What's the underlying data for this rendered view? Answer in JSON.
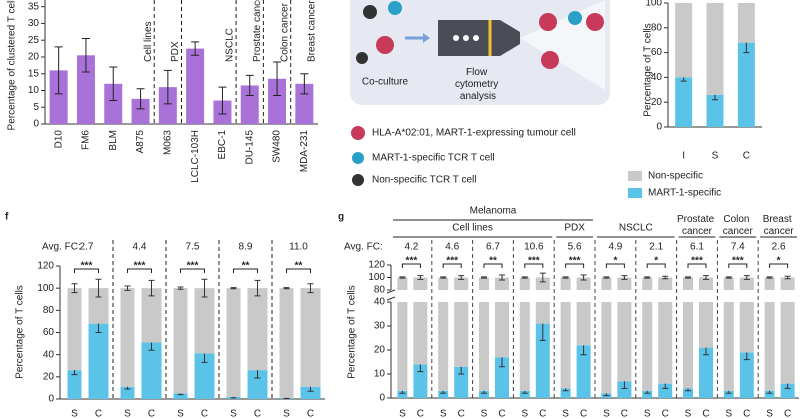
{
  "chart_data": [
    {
      "type": "bar",
      "ylabel": "Percentage of clustered T cells",
      "categories": [
        "D10",
        "FM6",
        "BLM",
        "A875",
        "M063",
        "LCLC-103H",
        "EBC-1",
        "DU-145",
        "SW480",
        "MDA-231"
      ],
      "values": [
        16,
        20.5,
        12,
        7.5,
        11,
        22.5,
        7,
        11.5,
        13.5,
        12
      ],
      "errors": [
        7,
        5,
        5,
        3,
        5,
        2,
        4,
        3,
        5,
        3
      ],
      "color": "#a872d8",
      "groups": [
        {
          "label": "Cell lines",
          "size": 4
        },
        {
          "label": "PDX",
          "size": 1
        },
        {
          "label": "NSCLC",
          "size": 2
        },
        {
          "label": "Prostate cancer",
          "size": 1
        },
        {
          "label": "Colon cancer",
          "size": 1
        },
        {
          "label": "Breast cancer",
          "size": 1
        }
      ],
      "ylim": [
        0,
        37
      ],
      "yticks": [
        0,
        5,
        10,
        15,
        20,
        25,
        30,
        35
      ]
    },
    {
      "type": "stacked_bar",
      "ylabel": "Percentage of T cells",
      "categories": [
        "I",
        "S",
        "C"
      ],
      "series": [
        {
          "name": "Non-specific",
          "color": "#c9c9c9",
          "values": [
            60,
            74,
            32
          ],
          "errors": [
            2,
            4,
            8
          ]
        },
        {
          "name": "MART-1-specific",
          "color": "#5cc3e8",
          "values": [
            40,
            26,
            68
          ],
          "errors": [
            3,
            4,
            8
          ]
        }
      ],
      "ylim": [
        0,
        100
      ],
      "yticks": [
        0,
        20,
        40,
        60,
        80,
        100
      ]
    },
    {
      "type": "stacked_bar",
      "panel": "f",
      "ylabel": "Percentage of T cells",
      "fc_label": "Avg. FC:",
      "categories": [
        "S",
        "C",
        "S",
        "C",
        "S",
        "C",
        "S",
        "C",
        "S",
        "C"
      ],
      "fold_change": [
        "2.7",
        "4.4",
        "7.5",
        "8.9",
        "11.0"
      ],
      "significance": [
        "***",
        "***",
        "***",
        "**",
        "**"
      ],
      "series": [
        {
          "color": "#c9c9c9",
          "values": [
            74,
            32,
            89,
            49,
            95,
            59,
            98,
            74,
            99,
            89
          ],
          "errors": [
            4,
            8,
            2,
            7,
            1,
            8,
            0.5,
            7,
            0.5,
            4
          ]
        },
        {
          "color": "#5cc3e8",
          "values": [
            26,
            68,
            11,
            51,
            5,
            41,
            2,
            26,
            1,
            11
          ],
          "errors": [
            4,
            8,
            2,
            7,
            1,
            8,
            1,
            7,
            0.5,
            4
          ]
        }
      ],
      "ylim": [
        0,
        120
      ],
      "yticks": [
        0,
        20,
        40,
        60,
        80,
        100,
        120
      ]
    },
    {
      "type": "stacked_bar",
      "panel": "g",
      "ylabel": "Percentage of T cells",
      "fc_label": "Avg. FC:",
      "header_top": [
        {
          "label": "Melanoma",
          "size": 5
        }
      ],
      "header_groups": [
        {
          "label": "Cell lines",
          "size": 4
        },
        {
          "label": "PDX",
          "size": 1
        },
        {
          "label": "NSCLC",
          "size": 2
        },
        {
          "label": "Prostate cancer",
          "size": 1
        },
        {
          "label": "Colon cancer",
          "size": 1
        },
        {
          "label": "Breast cancer",
          "size": 1
        }
      ],
      "categories": [
        "S",
        "C",
        "S",
        "C",
        "S",
        "C",
        "S",
        "C",
        "S",
        "C",
        "S",
        "C",
        "S",
        "C",
        "S",
        "C",
        "S",
        "C",
        "S",
        "C"
      ],
      "fold_change": [
        "4.2",
        "4.6",
        "6.7",
        "10.6",
        "5.6",
        "4.9",
        "2.1",
        "6.1",
        "7.4",
        "2.6"
      ],
      "significance": [
        "***",
        "***",
        "**",
        "***",
        "***",
        "*",
        "*",
        "***",
        "***",
        "*"
      ],
      "series": [
        {
          "color": "#c9c9c9",
          "values": [
            97,
            86,
            97,
            87,
            97,
            83,
            97,
            69,
            96,
            78,
            98,
            93,
            97,
            94,
            96,
            79,
            97,
            81,
            97,
            94
          ],
          "errors": [
            1,
            3,
            1,
            3,
            1,
            4,
            1,
            7,
            1,
            4,
            1,
            3,
            1,
            2,
            1,
            3,
            1,
            3,
            1,
            2
          ]
        },
        {
          "color": "#5cc3e8",
          "values": [
            3,
            14,
            3,
            13,
            3,
            17,
            3,
            31,
            4,
            22,
            2,
            7,
            3,
            6,
            4,
            21,
            3,
            19,
            3,
            6
          ],
          "errors": [
            1,
            3,
            1,
            3,
            1,
            4,
            1,
            7,
            1,
            4,
            1,
            3,
            1,
            2,
            1,
            3,
            1,
            3,
            1,
            2
          ]
        }
      ],
      "ylim": [
        0,
        120
      ],
      "axis_break": [
        40,
        80
      ],
      "yticks": [
        0,
        10,
        20,
        30,
        40,
        80,
        100,
        120
      ]
    }
  ],
  "diagram": {
    "steps": [
      "Co-culture",
      "Flow cytometry analysis"
    ],
    "legend": [
      "HLA-A*02:01, MART-1-expressing tumour cell",
      "MART-1-specific TCR T cell",
      "Non-specific TCR T cell"
    ]
  }
}
